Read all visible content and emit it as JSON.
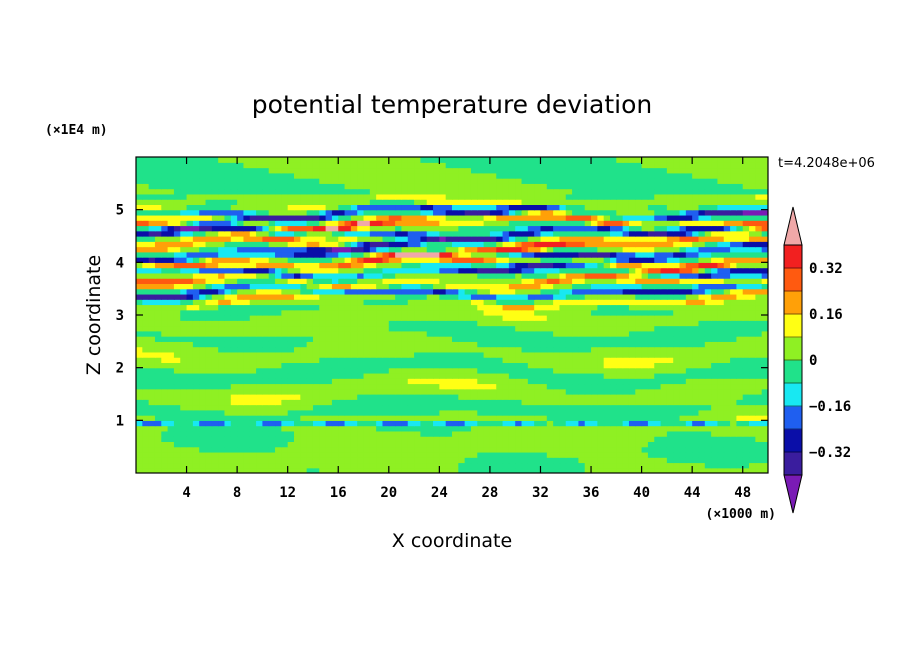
{
  "chart_data": {
    "type": "heatmap",
    "title": "potential temperature deviation",
    "xlabel": "X coordinate",
    "ylabel": "Z coordinate",
    "x_units": "(×1000 m)",
    "y_units": "(×1E4 m)",
    "time_label": "t=4.2048e+06",
    "xlim": [
      0,
      50
    ],
    "ylim": [
      0,
      6
    ],
    "x_ticks": [
      4,
      8,
      12,
      16,
      20,
      24,
      28,
      32,
      36,
      40,
      44,
      48
    ],
    "y_ticks": [
      1,
      2,
      3,
      4,
      5
    ],
    "x_tick_labels": [
      "4",
      "8",
      "12",
      "16",
      "20",
      "24",
      "28",
      "32",
      "36",
      "40",
      "44",
      "48"
    ],
    "y_tick_labels": [
      "1",
      "2",
      "3",
      "4",
      "5"
    ],
    "colorbar": {
      "levels": [
        -0.4,
        -0.32,
        -0.24,
        -0.16,
        -0.08,
        0,
        0.08,
        0.16,
        0.24,
        0.32,
        0.4
      ],
      "colors": [
        "#7a1bb5",
        "#3a1d9e",
        "#0a0ea8",
        "#1f5ff0",
        "#18e8f2",
        "#20e28a",
        "#8ff023",
        "#ffff14",
        "#ffa008",
        "#ff5a10",
        "#f22020",
        "#f0a8a8"
      ],
      "labels": [
        {
          "value": -0.32,
          "text": "−0.32"
        },
        {
          "value": -0.16,
          "text": "−0.16"
        },
        {
          "value": 0,
          "text": "0"
        },
        {
          "value": 0.16,
          "text": "0.16"
        },
        {
          "value": 0.32,
          "text": "0.32"
        }
      ]
    },
    "bands": [
      {
        "z": 5.2,
        "amp": 0.1
      },
      {
        "z": 4.95,
        "amp": -0.45
      },
      {
        "z": 4.78,
        "amp": 0.45
      },
      {
        "z": 4.55,
        "amp": -0.45
      },
      {
        "z": 4.38,
        "amp": 0.36
      },
      {
        "z": 4.2,
        "amp": -0.45
      },
      {
        "z": 4.02,
        "amp": 0.45
      },
      {
        "z": 3.85,
        "amp": -0.4
      },
      {
        "z": 3.62,
        "amp": 0.3
      },
      {
        "z": 3.45,
        "amp": -0.38
      },
      {
        "z": 3.3,
        "amp": 0.2
      }
    ]
  }
}
